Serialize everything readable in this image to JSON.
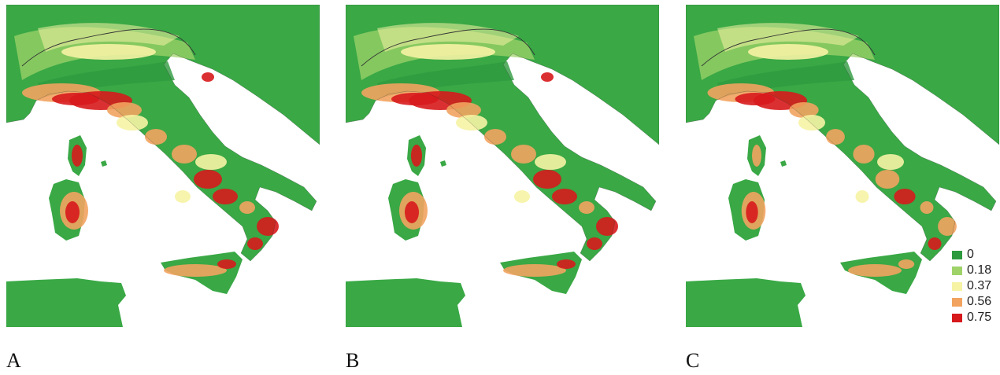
{
  "panels": [
    {
      "label": "A"
    },
    {
      "label": "B"
    },
    {
      "label": "C"
    }
  ],
  "legend": [
    {
      "value": "0",
      "color": "#2e9a3f"
    },
    {
      "value": "0.18",
      "color": "#9fd36a"
    },
    {
      "value": "0.37",
      "color": "#f6f3a4"
    },
    {
      "value": "0.56",
      "color": "#f2a35f"
    },
    {
      "value": "0.75",
      "color": "#d7191c"
    }
  ],
  "colors": {
    "land": "#39a845",
    "land_dark": "#2e9a3f",
    "light_green": "#9fd36a",
    "yellow": "#f6f3a4",
    "orange": "#f2a35f",
    "red": "#d7191c",
    "sea": "#ffffff",
    "border": "#333333"
  }
}
